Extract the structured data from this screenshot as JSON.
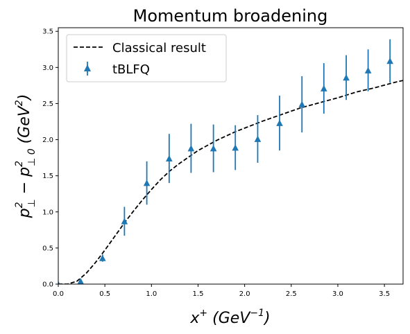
{
  "chart_data": {
    "type": "scatter",
    "title": "Momentum broadening",
    "xlabel": {
      "base": "x",
      "sup": "+",
      "unit_prefix": "  (GeV",
      "unit_sup": "−1",
      "unit_suffix": ")"
    },
    "ylabel": {
      "a": "p",
      "a_sup": "2",
      "a_sub": "⊥",
      "minus": " − ",
      "b": "p",
      "b_sup": "2",
      "b_sub": "⊥ 0",
      "unit_prefix": "  (GeV",
      "unit_sup": "2",
      "unit_suffix": ")"
    },
    "xlim": [
      0,
      3.7
    ],
    "ylim": [
      0,
      3.55
    ],
    "xticks": [
      0.0,
      0.5,
      1.0,
      1.5,
      2.0,
      2.5,
      3.0,
      3.5
    ],
    "yticks": [
      0.0,
      0.5,
      1.0,
      1.5,
      2.0,
      2.5,
      3.0,
      3.5
    ],
    "xtick_labels": [
      "0.0",
      "0.5",
      "1.0",
      "1.5",
      "2.0",
      "2.5",
      "3.0",
      "3.5"
    ],
    "ytick_labels": [
      "0.0",
      "0.5",
      "1.0",
      "1.5",
      "2.0",
      "2.5",
      "3.0",
      "3.5"
    ],
    "legend_position": "top-left",
    "colors": {
      "tblfq": "#1f77b4",
      "classical": "#000000"
    },
    "series": [
      {
        "name": "Classical result",
        "kind": "line",
        "style": "dashed",
        "x": [
          0.0,
          0.1,
          0.2,
          0.3,
          0.4,
          0.5,
          0.6,
          0.7,
          0.8,
          0.9,
          1.0,
          1.1,
          1.2,
          1.3,
          1.4,
          1.5,
          1.6,
          1.7,
          1.8,
          1.9,
          2.0,
          2.2,
          2.4,
          2.6,
          2.8,
          3.0,
          3.2,
          3.4,
          3.6,
          3.7
        ],
        "y": [
          0.0,
          0.0,
          0.04,
          0.15,
          0.3,
          0.47,
          0.65,
          0.83,
          1.0,
          1.16,
          1.31,
          1.45,
          1.57,
          1.67,
          1.76,
          1.85,
          1.92,
          1.99,
          2.05,
          2.11,
          2.16,
          2.26,
          2.35,
          2.44,
          2.51,
          2.58,
          2.66,
          2.72,
          2.79,
          2.82
        ]
      },
      {
        "name": "tBLFQ",
        "kind": "errorbar",
        "marker": "triangle",
        "x": [
          0.0,
          0.24,
          0.475,
          0.71,
          0.95,
          1.19,
          1.425,
          1.665,
          1.9,
          2.14,
          2.375,
          2.615,
          2.85,
          3.09,
          3.325,
          3.56
        ],
        "y": [
          0.0,
          0.04,
          0.36,
          0.87,
          1.4,
          1.74,
          1.88,
          1.88,
          1.89,
          2.01,
          2.23,
          2.49,
          2.71,
          2.86,
          2.96,
          3.09
        ],
        "yerr": [
          0.0,
          0.02,
          0.05,
          0.2,
          0.3,
          0.34,
          0.34,
          0.33,
          0.31,
          0.33,
          0.38,
          0.39,
          0.35,
          0.31,
          0.29,
          0.3
        ]
      }
    ]
  }
}
